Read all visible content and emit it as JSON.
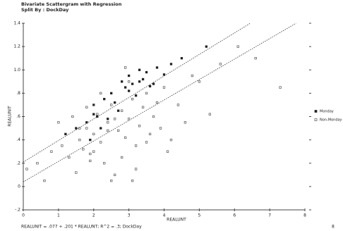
{
  "chart_data": {
    "type": "scatter",
    "title": "Bivariate Scattergram with Regression",
    "subtitle": "Split By : DockDay",
    "x_label": "REALUNT",
    "y_label": "REALUNIT",
    "footer": "REALUNIT = .077 + .201 * REALUNT; R^2 = .3; DockDay",
    "page_number": "8",
    "xlim": [
      0,
      8
    ],
    "xticks": [
      0,
      1,
      2,
      3,
      4,
      5,
      6,
      7,
      8
    ],
    "ylim": [
      -0.2,
      1.4
    ],
    "yticks": [
      {
        "value": -0.2,
        "label": "-.2"
      },
      0,
      {
        "value": 0.2,
        "label": ".2"
      },
      {
        "value": 0.4,
        "label": ".4"
      },
      {
        "value": 0.6,
        "label": ".6"
      },
      {
        "value": 0.8,
        "label": ".8"
      },
      {
        "value": 1.0,
        "label": "1.0"
      },
      1.2,
      1.4
    ],
    "legend": "right",
    "series": [
      {
        "name": "Monday",
        "color": "#222222",
        "marker": "filled",
        "x": [
          1.2,
          1.5,
          1.8,
          2.0,
          2.1,
          2.3,
          2.5,
          2.6,
          2.8,
          2.9,
          3.0,
          3.1,
          3.2,
          3.3,
          3.4,
          3.5,
          3.6,
          3.8,
          4.0,
          4.2,
          4.5,
          5.2,
          2.2,
          2.7,
          3.0,
          3.3,
          1.9,
          2.4,
          3.7,
          2.0
        ],
        "values": [
          0.45,
          0.5,
          0.55,
          0.7,
          0.6,
          0.75,
          0.8,
          0.72,
          0.9,
          0.85,
          0.95,
          0.88,
          0.78,
          1.0,
          0.92,
          0.98,
          0.86,
          1.02,
          0.96,
          1.05,
          1.1,
          1.2,
          0.5,
          0.65,
          0.82,
          0.9,
          0.4,
          0.58,
          0.88,
          0.62
        ]
      },
      {
        "name": "Non-Monday",
        "color": "#555555",
        "marker": "open",
        "x": [
          0.1,
          0.4,
          0.6,
          0.8,
          1.0,
          1.1,
          1.3,
          1.4,
          1.6,
          1.7,
          1.8,
          1.9,
          2.0,
          2.1,
          2.2,
          2.3,
          2.4,
          2.5,
          2.6,
          2.7,
          2.8,
          2.9,
          3.0,
          3.1,
          3.2,
          3.3,
          3.4,
          3.5,
          3.6,
          3.7,
          3.8,
          3.9,
          4.0,
          4.2,
          4.4,
          4.6,
          4.8,
          5.0,
          5.3,
          5.6,
          6.1,
          6.6,
          7.3,
          1.5,
          1.8,
          2.0,
          2.2,
          2.5,
          2.8,
          3.0,
          3.2,
          3.5,
          2.4,
          1.9,
          2.6,
          3.1,
          4.1,
          2.0,
          1.6,
          2.9
        ],
        "values": [
          0.15,
          0.2,
          0.05,
          0.3,
          0.55,
          0.35,
          0.25,
          0.6,
          0.4,
          0.32,
          0.5,
          0.28,
          0.45,
          0.62,
          0.38,
          0.2,
          0.55,
          0.7,
          0.1,
          0.48,
          0.65,
          0.42,
          0.58,
          0.75,
          0.35,
          0.52,
          0.68,
          0.8,
          0.45,
          0.6,
          0.72,
          0.5,
          0.85,
          0.4,
          0.7,
          0.55,
          0.95,
          0.9,
          0.62,
          1.05,
          1.2,
          1.1,
          0.85,
          0.12,
          0.68,
          0.3,
          0.8,
          0.05,
          0.25,
          0.9,
          0.15,
          0.38,
          0.48,
          0.22,
          0.58,
          0.05,
          0.3,
          0.7,
          0.5,
          1.02
        ]
      }
    ],
    "regression_lines": [
      {
        "x": [
          0,
          6.45
        ],
        "values": [
          0.21,
          1.4
        ]
      },
      {
        "x": [
          0,
          7.75
        ],
        "values": [
          0.04,
          1.4
        ]
      }
    ]
  }
}
